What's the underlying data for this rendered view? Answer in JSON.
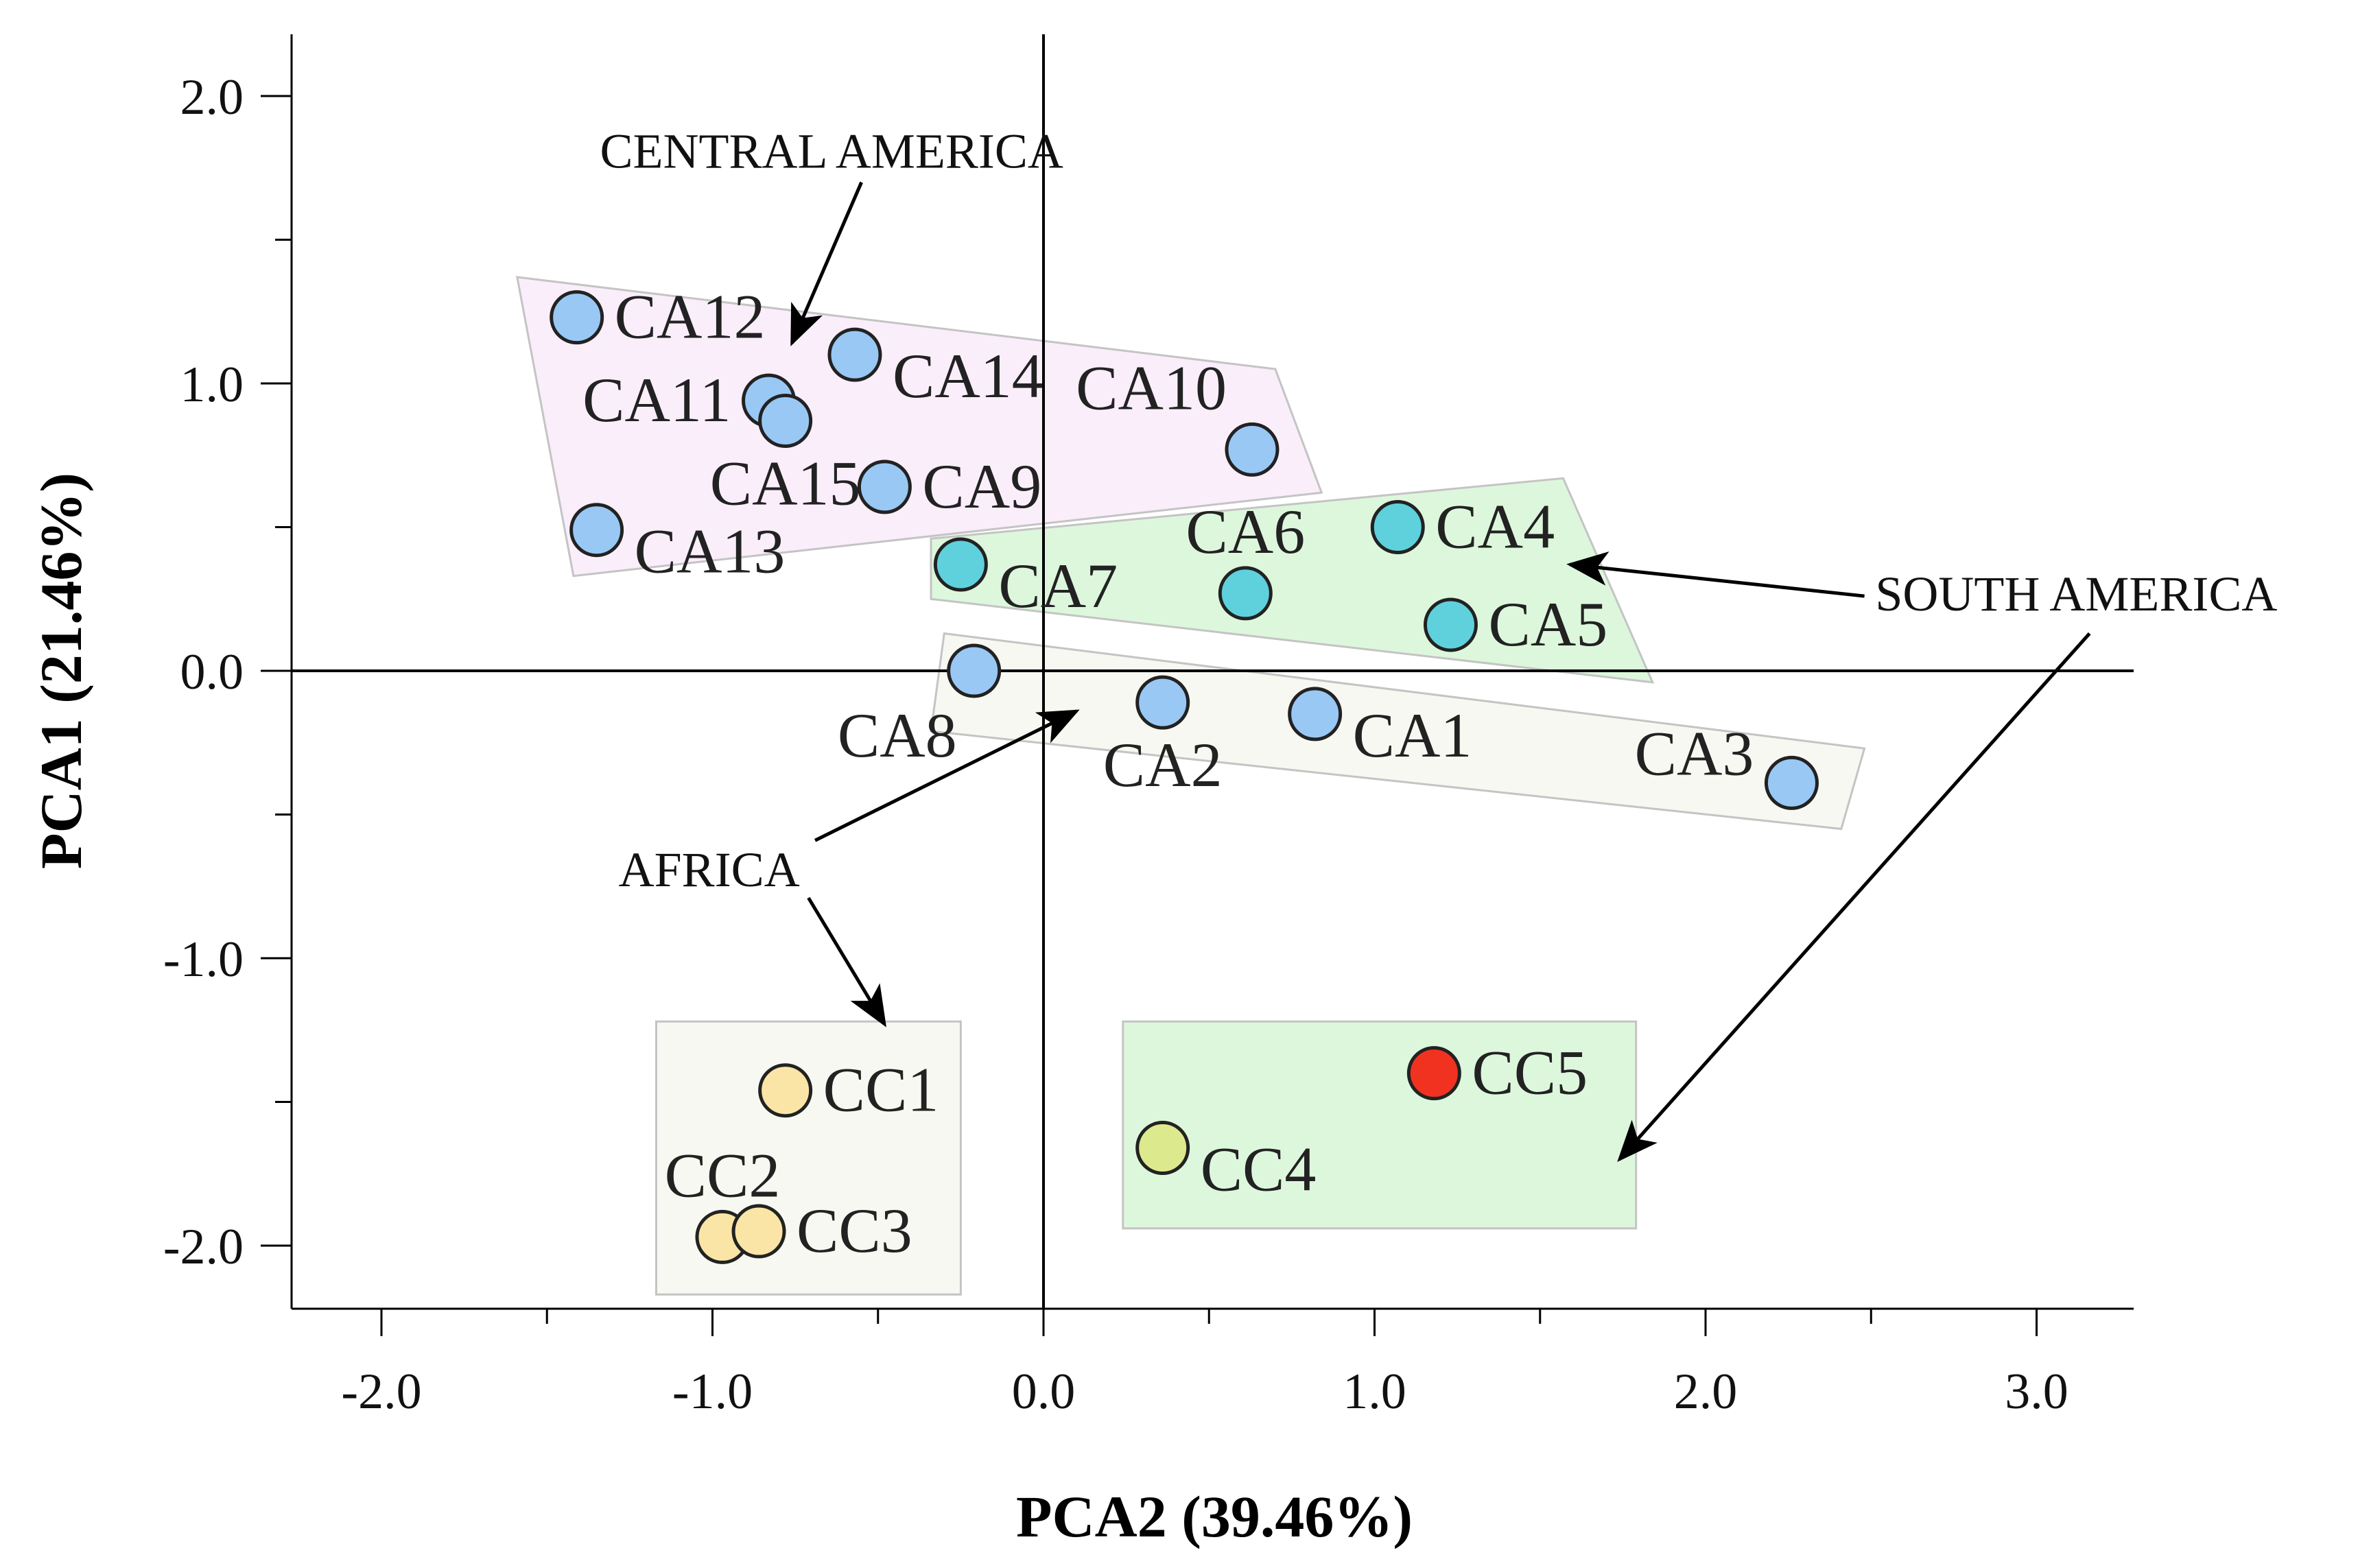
{
  "chart_data": {
    "type": "scatter",
    "xlabel": "PCA2 (39.46%)",
    "ylabel": "PCA1 (21.46%)",
    "xlim": [
      -2.28,
      3.28
    ],
    "ylim": [
      -2.22,
      2.22
    ],
    "x_ticks": [
      -2.0,
      -1.0,
      0.0,
      1.0,
      2.0,
      3.0
    ],
    "x_tick_labels": [
      "-2.0",
      "-1.0",
      "0.0",
      "1.0",
      "2.0",
      "3.0"
    ],
    "y_ticks": [
      2.0,
      1.0,
      0.0,
      -1.0,
      -2.0
    ],
    "y_tick_labels": [
      "2.0",
      "1.0",
      "0.0",
      "-1.0",
      "-2.0"
    ],
    "grid": false,
    "colors": {
      "ca_blue": "#99c8f5",
      "ca_teal": "#5fd1dc",
      "cc_yellow": "#fae5a6",
      "cc_lime": "#dde98d",
      "cc_red": "#f13221",
      "central_america_region": "#faeefa",
      "south_america_region": "#ddf7dc",
      "africa_region": "#f8f8f2"
    },
    "points": [
      {
        "label": "CA12",
        "x": -1.41,
        "y": 1.23,
        "color": "#99c8f5",
        "label_pos": "right"
      },
      {
        "label": "CA14",
        "x": -0.57,
        "y": 1.1,
        "color": "#99c8f5",
        "label_pos": "right-below"
      },
      {
        "label": "CA11",
        "x": -0.83,
        "y": 0.94,
        "color": "#99c8f5",
        "label_pos": "left"
      },
      {
        "label": "CA15",
        "x": -0.78,
        "y": 0.87,
        "color": "#99c8f5",
        "label_pos": "below"
      },
      {
        "label": "CA10",
        "x": 0.63,
        "y": 0.77,
        "color": "#99c8f5",
        "label_pos": "above-left"
      },
      {
        "label": "CA9",
        "x": -0.48,
        "y": 0.64,
        "color": "#99c8f5",
        "label_pos": "right"
      },
      {
        "label": "CA13",
        "x": -1.35,
        "y": 0.49,
        "color": "#99c8f5",
        "label_pos": "right-below"
      },
      {
        "label": "CA4",
        "x": 1.07,
        "y": 0.5,
        "color": "#5fd1dc",
        "label_pos": "right"
      },
      {
        "label": "CA7",
        "x": -0.25,
        "y": 0.37,
        "color": "#5fd1dc",
        "label_pos": "right-below"
      },
      {
        "label": "CA6",
        "x": 0.61,
        "y": 0.27,
        "color": "#5fd1dc",
        "label_pos": "above"
      },
      {
        "label": "CA5",
        "x": 1.23,
        "y": 0.16,
        "color": "#5fd1dc",
        "label_pos": "right"
      },
      {
        "label": "CA8",
        "x": -0.21,
        "y": 0.0,
        "color": "#99c8f5",
        "label_pos": "below-left"
      },
      {
        "label": "CA2",
        "x": 0.36,
        "y": -0.11,
        "color": "#99c8f5",
        "label_pos": "below"
      },
      {
        "label": "CA1",
        "x": 0.82,
        "y": -0.15,
        "color": "#99c8f5",
        "label_pos": "right-below"
      },
      {
        "label": "CA3",
        "x": 2.26,
        "y": -0.39,
        "color": "#99c8f5",
        "label_pos": "left-above"
      },
      {
        "label": "CC1",
        "x": -0.78,
        "y": -1.46,
        "color": "#fae5a6",
        "label_pos": "right"
      },
      {
        "label": "CC2",
        "x": -0.97,
        "y": -1.97,
        "color": "#fae5a6",
        "label_pos": "above"
      },
      {
        "label": "CC3",
        "x": -0.86,
        "y": -1.95,
        "color": "#fae5a6",
        "label_pos": "right"
      },
      {
        "label": "CC5",
        "x": 1.18,
        "y": -1.4,
        "color": "#f13221",
        "label_pos": "right"
      },
      {
        "label": "CC4",
        "x": 0.36,
        "y": -1.66,
        "color": "#dde98d",
        "label_pos": "right-below"
      }
    ],
    "regions": [
      {
        "name": "CENTRAL AMERICA",
        "fill": "#faeefa",
        "polygon": [
          [
            -1.59,
            1.37
          ],
          [
            0.7,
            1.05
          ],
          [
            0.84,
            0.62
          ],
          [
            -1.42,
            0.33
          ]
        ]
      },
      {
        "name": "SOUTH AMERICA",
        "fill": "#ddf7dc",
        "polygon": [
          [
            -0.34,
            0.46
          ],
          [
            1.57,
            0.67
          ],
          [
            1.84,
            -0.04
          ],
          [
            -0.34,
            0.25
          ]
        ]
      },
      {
        "name": "AFRICA",
        "fill": "#f8f8f2",
        "polygon": [
          [
            -0.3,
            0.13
          ],
          [
            2.48,
            -0.27
          ],
          [
            2.41,
            -0.55
          ],
          [
            -0.34,
            -0.21
          ]
        ]
      },
      {
        "name": "AFRICA",
        "fill": "#f8f8f2",
        "polygon": [
          [
            -1.17,
            -1.22
          ],
          [
            -0.25,
            -1.22
          ],
          [
            -0.25,
            -2.17
          ],
          [
            -1.17,
            -2.17
          ]
        ]
      },
      {
        "name": "SOUTH AMERICA",
        "fill": "#ddf7dc",
        "polygon": [
          [
            0.24,
            -1.22
          ],
          [
            1.79,
            -1.22
          ],
          [
            1.79,
            -1.94
          ],
          [
            0.24,
            -1.94
          ]
        ]
      }
    ],
    "annotations": [
      {
        "text": "CENTRAL AMERICA",
        "text_x": -0.64,
        "text_y": 1.81,
        "arrows": [
          {
            "from": [
              -0.55,
              1.7
            ],
            "to": [
              -0.76,
              1.14
            ]
          }
        ]
      },
      {
        "text": "SOUTH AMERICA",
        "text_x": 3.12,
        "text_y": 0.27,
        "arrows": [
          {
            "from": [
              2.48,
              0.26
            ],
            "to": [
              1.59,
              0.37
            ]
          },
          {
            "from": [
              3.16,
              0.13
            ],
            "to": [
              1.74,
              -1.7
            ]
          }
        ]
      },
      {
        "text": "AFRICA",
        "text_x": -1.01,
        "text_y": -0.69,
        "arrows": [
          {
            "from": [
              -0.69,
              -0.59
            ],
            "to": [
              0.1,
              -0.14
            ]
          },
          {
            "from": [
              -0.71,
              -0.79
            ],
            "to": [
              -0.48,
              -1.23
            ]
          }
        ]
      }
    ]
  }
}
